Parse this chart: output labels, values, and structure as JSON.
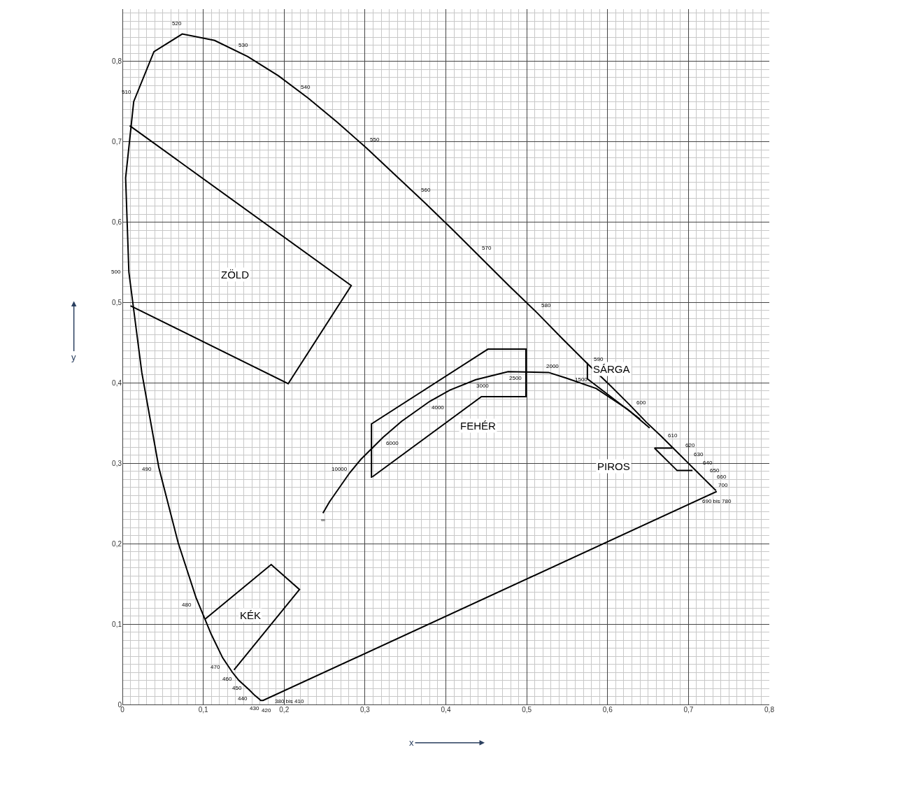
{
  "chart_data": {
    "type": "line",
    "xlabel": "x",
    "ylabel": "y",
    "grid": true,
    "marker": "none",
    "line_style": "solid",
    "xlim": [
      0,
      0.8
    ],
    "ylim": [
      0,
      0.865
    ],
    "xticks": [
      0,
      {
        "value": 0.1,
        "label": "0,1"
      },
      {
        "value": 0.2,
        "label": "0,2"
      },
      {
        "value": 0.3,
        "label": "0,3"
      },
      {
        "value": 0.4,
        "label": "0,4"
      },
      {
        "value": 0.5,
        "label": "0,5"
      },
      {
        "value": 0.6,
        "label": "0,6"
      },
      {
        "value": 0.7,
        "label": "0,7"
      },
      {
        "value": 0.8,
        "label": "0,8"
      }
    ],
    "yticks": [
      0,
      {
        "value": 0.1,
        "label": "0,1"
      },
      {
        "value": 0.2,
        "label": "0,2"
      },
      {
        "value": 0.3,
        "label": "0,3"
      },
      {
        "value": 0.4,
        "label": "0,4"
      },
      {
        "value": 0.5,
        "label": "0,5"
      },
      {
        "value": 0.6,
        "label": "0,6"
      },
      {
        "value": 0.7,
        "label": "0,7"
      },
      {
        "value": 0.8,
        "label": "0,8"
      }
    ],
    "series": [
      {
        "color": "#000000",
        "x": [
          0.735,
          0.174,
          0.173,
          0.171,
          0.169,
          0.164,
          0.157,
          0.144,
          0.136,
          0.124,
          0.11,
          0.091,
          0.069,
          0.045,
          0.024,
          0.008,
          0.004,
          0.014,
          0.039,
          0.074,
          0.114,
          0.155,
          0.193,
          0.23,
          0.266,
          0.302,
          0.337,
          0.373,
          0.409,
          0.444,
          0.479,
          0.513,
          0.545,
          0.575,
          0.603,
          0.627,
          0.648,
          0.666,
          0.688,
          0.699,
          0.71,
          0.719,
          0.727,
          0.731,
          0.734
        ],
        "values": [
          0.265,
          0.005,
          0.005,
          0.005,
          0.007,
          0.011,
          0.018,
          0.03,
          0.04,
          0.058,
          0.087,
          0.133,
          0.201,
          0.295,
          0.413,
          0.538,
          0.655,
          0.75,
          0.812,
          0.834,
          0.826,
          0.806,
          0.782,
          0.754,
          0.724,
          0.692,
          0.659,
          0.625,
          0.59,
          0.555,
          0.52,
          0.487,
          0.454,
          0.424,
          0.397,
          0.373,
          0.351,
          0.334,
          0.312,
          0.301,
          0.29,
          0.281,
          0.273,
          0.269,
          0.266
        ]
      },
      {
        "color": "#000000",
        "x": [
          0.248,
          0.256,
          0.281,
          0.295,
          0.322,
          0.345,
          0.38,
          0.405,
          0.437,
          0.477,
          0.527,
          0.549,
          0.586,
          0.625,
          0.652
        ],
        "values": [
          0.238,
          0.252,
          0.288,
          0.305,
          0.332,
          0.352,
          0.377,
          0.391,
          0.404,
          0.414,
          0.413,
          0.406,
          0.393,
          0.367,
          0.344
        ]
      },
      {
        "color": "#000000",
        "x": [
          0.009,
          0.283,
          0.205,
          0.01
        ],
        "values": [
          0.72,
          0.521,
          0.399,
          0.496
        ]
      },
      {
        "color": "#000000",
        "x": [
          0.102,
          0.184,
          0.219,
          0.138
        ],
        "values": [
          0.106,
          0.174,
          0.143,
          0.043
        ]
      },
      {
        "color": "#000000",
        "x": [
          0.308,
          0.308,
          0.452,
          0.499,
          0.499,
          0.444,
          0.309
        ],
        "values": [
          0.282,
          0.349,
          0.442,
          0.442,
          0.383,
          0.383,
          0.283
        ]
      },
      {
        "color": "#000000",
        "x": [
          0.575,
          0.575,
          0.64
        ],
        "values": [
          0.425,
          0.405,
          0.355
        ]
      },
      {
        "color": "#000000",
        "x": [
          0.705,
          0.686,
          0.658,
          0.68
        ],
        "values": [
          0.291,
          0.291,
          0.319,
          0.319
        ]
      }
    ],
    "annotations": [
      "ZÖLD",
      "KÉK",
      "FEHÉR",
      "SÁRGA",
      "PIROS",
      {
        "text": "520",
        "x": 0.074,
        "y": 0.834
      },
      {
        "text": "530",
        "x": 0.155,
        "y": 0.806
      },
      {
        "text": "540",
        "x": 0.23,
        "y": 0.754
      },
      {
        "text": "550",
        "x": 0.302,
        "y": 0.692
      },
      {
        "text": "560",
        "x": 0.373,
        "y": 0.625
      },
      {
        "text": "570",
        "x": 0.444,
        "y": 0.555
      },
      {
        "text": "580",
        "x": 0.513,
        "y": 0.487
      },
      {
        "text": "590",
        "x": 0.575,
        "y": 0.424
      },
      {
        "text": "600",
        "x": 0.627,
        "y": 0.373
      },
      {
        "text": "610",
        "x": 0.666,
        "y": 0.334
      },
      {
        "text": "620",
        "x": 0.688,
        "y": 0.312
      },
      {
        "text": "630",
        "x": 0.699,
        "y": 0.301
      },
      {
        "text": "640",
        "x": 0.71,
        "y": 0.29
      },
      {
        "text": "650",
        "x": 0.719,
        "y": 0.281
      },
      {
        "text": "660",
        "x": 0.727,
        "y": 0.273
      },
      {
        "text": "700",
        "x": 0.731,
        "y": 0.269
      },
      {
        "text": "690 bis 780",
        "x": 0.735,
        "y": 0.265
      },
      {
        "text": "510",
        "x": 0.014,
        "y": 0.75
      },
      {
        "text": "500",
        "x": 0.008,
        "y": 0.538
      },
      {
        "text": "490",
        "x": 0.045,
        "y": 0.295
      },
      {
        "text": "480",
        "x": 0.091,
        "y": 0.133
      },
      {
        "text": "470",
        "x": 0.124,
        "y": 0.058
      },
      {
        "text": "460",
        "x": 0.144,
        "y": 0.03
      },
      {
        "text": "450",
        "x": 0.157,
        "y": 0.018
      },
      {
        "text": "440",
        "x": 0.164,
        "y": 0.011
      },
      {
        "text": "430",
        "x": 0.169,
        "y": 0.007
      },
      {
        "text": "420",
        "x": 0.171,
        "y": 0.005
      },
      {
        "text": "380 bis 410",
        "x": 0.174,
        "y": 0.005
      },
      {
        "text": "∞",
        "x": 0.248,
        "y": 0.238
      },
      {
        "text": "10000",
        "x": 0.281,
        "y": 0.288
      },
      {
        "text": "6000",
        "x": 0.322,
        "y": 0.332
      },
      {
        "text": "4000",
        "x": 0.38,
        "y": 0.377
      },
      {
        "text": "3000",
        "x": 0.437,
        "y": 0.404
      },
      {
        "text": "2500",
        "x": 0.477,
        "y": 0.414
      },
      {
        "text": "2000",
        "x": 0.527,
        "y": 0.413
      },
      {
        "text": "1500",
        "x": 0.586,
        "y": 0.393
      }
    ]
  }
}
